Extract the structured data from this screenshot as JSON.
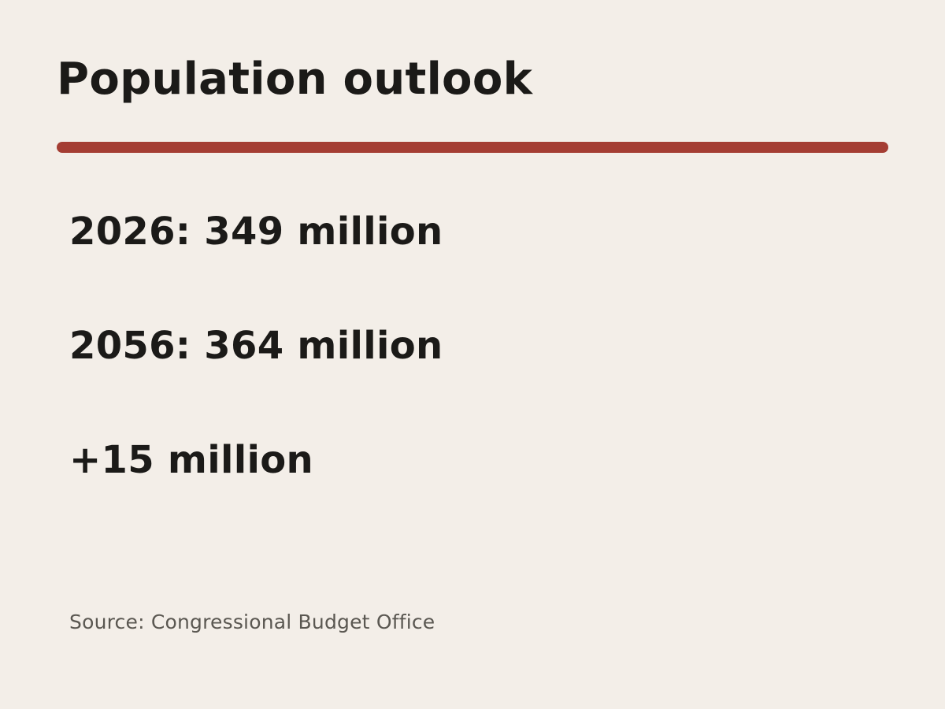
{
  "colors": {
    "background": "#f3eee8",
    "text": "#1b1a18",
    "accent": "#a43d33",
    "muted": "#5a5751"
  },
  "title": "Population outlook",
  "stats": [
    {
      "text": "2026: 349 million"
    },
    {
      "text": "2056: 364 million"
    },
    {
      "text": "+15 million"
    }
  ],
  "source": "Source: Congressional Budget Office"
}
